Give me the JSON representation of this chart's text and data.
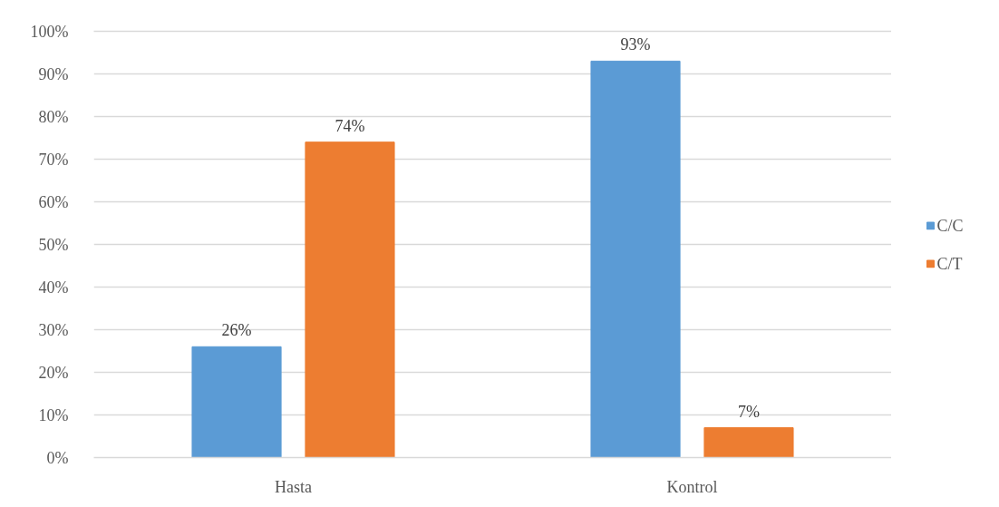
{
  "chart_data": {
    "type": "bar",
    "categories": [
      "Hasta",
      "Kontrol"
    ],
    "series": [
      {
        "name": "C/C",
        "color": "#5b9bd5",
        "values": [
          26,
          93
        ],
        "value_labels": [
          "26%",
          "93%"
        ]
      },
      {
        "name": "C/T",
        "color": "#ed7d31",
        "values": [
          74,
          7
        ],
        "value_labels": [
          "74%",
          "7%"
        ]
      }
    ],
    "ylim": [
      0,
      100
    ],
    "yticks": [
      {
        "value": 0,
        "label": "0%"
      },
      {
        "value": 10,
        "label": "10%"
      },
      {
        "value": 20,
        "label": "20%"
      },
      {
        "value": 30,
        "label": "30%"
      },
      {
        "value": 40,
        "label": "40%"
      },
      {
        "value": 50,
        "label": "50%"
      },
      {
        "value": 60,
        "label": "60%"
      },
      {
        "value": 70,
        "label": "70%"
      },
      {
        "value": 80,
        "label": "80%"
      },
      {
        "value": 90,
        "label": "90%"
      },
      {
        "value": 100,
        "label": "100%"
      }
    ],
    "grid": "y",
    "legend": "right"
  }
}
